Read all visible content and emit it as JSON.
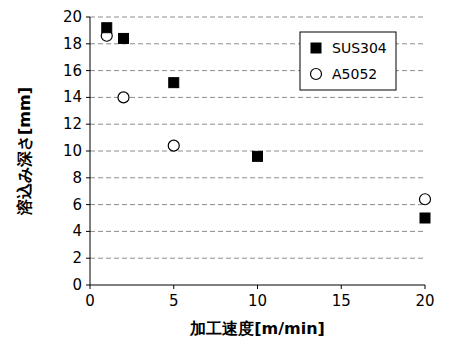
{
  "chart_data": {
    "type": "scatter",
    "x_label": "加工速度[m/min]",
    "y_label": "溶込み深さ[mm]",
    "xlim": [
      0,
      20
    ],
    "xticks": [
      0,
      5,
      10,
      15,
      20
    ],
    "ylim": [
      0,
      20
    ],
    "yticks": [
      0,
      2,
      4,
      6,
      8,
      10,
      12,
      14,
      16,
      18,
      20
    ],
    "grid": true,
    "legend": "top-right",
    "series": [
      {
        "name": "SUS304",
        "color": "#000000",
        "marker": "square",
        "x": [
          1,
          2,
          5,
          10,
          20
        ],
        "values": [
          19.2,
          18.4,
          15.1,
          9.6,
          5.0
        ]
      },
      {
        "name": "A5052",
        "color": "#000000",
        "marker": "open-circle",
        "x": [
          1,
          2,
          5,
          20
        ],
        "values": [
          18.6,
          14.0,
          10.4,
          6.4
        ]
      }
    ]
  }
}
